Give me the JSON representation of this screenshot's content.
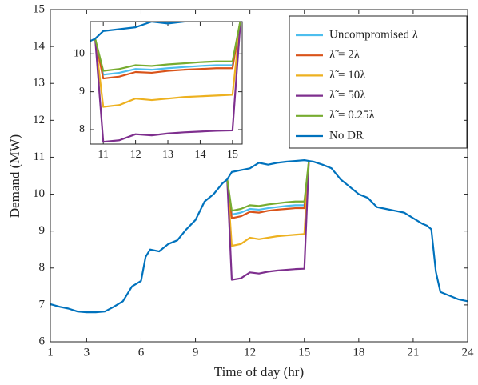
{
  "chart_data": {
    "type": "line",
    "x_label": "Time of day (hr)",
    "y_label": "Demand (MW)",
    "xlim": [
      1,
      24
    ],
    "ylim": [
      6,
      15
    ],
    "xticks": [
      1,
      3,
      6,
      9,
      12,
      15,
      18,
      21,
      24
    ],
    "yticks": [
      6,
      7,
      8,
      9,
      10,
      11,
      12,
      13,
      14,
      15
    ],
    "legend": "upper right",
    "inset": {
      "xlim": [
        10.6,
        15.3
      ],
      "ylim": [
        7.62,
        10.85
      ],
      "xticks": [
        11,
        12,
        13,
        14,
        15
      ],
      "yticks": [
        8,
        9,
        10
      ]
    },
    "series": [
      {
        "name": "Uncompromised λ",
        "color": "#4DBEEE",
        "x": [
          10.75,
          11,
          11.5,
          12,
          12.5,
          13,
          13.5,
          14,
          14.5,
          15,
          15.25
        ],
        "values": [
          10.4,
          9.45,
          9.5,
          9.6,
          9.58,
          9.62,
          9.65,
          9.68,
          9.7,
          9.7,
          10.9
        ]
      },
      {
        "name": "λ̃ = 2λ",
        "color": "#D95319",
        "x": [
          10.75,
          11,
          11.5,
          12,
          12.5,
          13,
          13.5,
          14,
          14.5,
          15,
          15.25
        ],
        "values": [
          10.4,
          9.35,
          9.4,
          9.52,
          9.5,
          9.55,
          9.58,
          9.6,
          9.62,
          9.62,
          10.9
        ]
      },
      {
        "name": "λ̃ = 10λ",
        "color": "#EDB120",
        "x": [
          10.75,
          11,
          11.5,
          12,
          12.5,
          13,
          13.5,
          14,
          14.5,
          15,
          15.25
        ],
        "values": [
          10.4,
          8.6,
          8.65,
          8.82,
          8.78,
          8.82,
          8.86,
          8.88,
          8.9,
          8.92,
          10.9
        ]
      },
      {
        "name": "λ̃ = 50λ",
        "color": "#7E2F8E",
        "x": [
          10.75,
          11,
          11.5,
          12,
          12.5,
          13,
          13.5,
          14,
          14.5,
          15,
          15.25
        ],
        "values": [
          10.4,
          7.68,
          7.72,
          7.88,
          7.85,
          7.9,
          7.93,
          7.95,
          7.97,
          7.98,
          10.9
        ]
      },
      {
        "name": "λ̃ = 0.25λ",
        "color": "#77AC30",
        "x": [
          10.75,
          11,
          11.5,
          12,
          12.5,
          13,
          13.5,
          14,
          14.5,
          15,
          15.25
        ],
        "values": [
          10.4,
          9.55,
          9.6,
          9.7,
          9.68,
          9.72,
          9.75,
          9.78,
          9.8,
          9.8,
          10.9
        ]
      },
      {
        "name": "No DR",
        "color": "#0072BD",
        "x": [
          1,
          1.5,
          2,
          2.5,
          3,
          3.5,
          4,
          4.5,
          5,
          5.5,
          6,
          6.25,
          6.5,
          7,
          7.5,
          8,
          8.5,
          9,
          9.5,
          10,
          10.5,
          10.75,
          11,
          11.5,
          12,
          12.5,
          13,
          13.5,
          14,
          14.5,
          15,
          15.25,
          15.5,
          16,
          16.5,
          17,
          17.5,
          18,
          18.5,
          19,
          19.5,
          20,
          20.5,
          21,
          21.5,
          21.75,
          22,
          22.25,
          22.5,
          23,
          23.5,
          24
        ],
        "values": [
          7.02,
          6.95,
          6.9,
          6.82,
          6.8,
          6.8,
          6.82,
          6.95,
          7.1,
          7.5,
          7.65,
          8.3,
          8.5,
          8.45,
          8.65,
          8.75,
          9.05,
          9.3,
          9.8,
          10.0,
          10.3,
          10.4,
          10.6,
          10.65,
          10.7,
          10.85,
          10.8,
          10.85,
          10.88,
          10.9,
          10.92,
          10.9,
          10.88,
          10.8,
          10.7,
          10.4,
          10.2,
          10.0,
          9.9,
          9.65,
          9.6,
          9.55,
          9.5,
          9.35,
          9.2,
          9.15,
          9.05,
          7.9,
          7.35,
          7.25,
          7.15,
          7.1
        ]
      }
    ]
  }
}
